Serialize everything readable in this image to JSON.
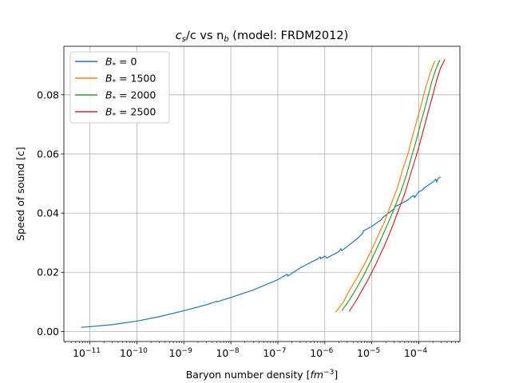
{
  "chart_data": {
    "type": "line",
    "title": "c_s/c vs n_b (model: FRDM2012)",
    "title_parts": {
      "pre": "c",
      "sub1": "s",
      "mid": "/c vs n",
      "sub2": "b",
      "post": " (model: FRDM2012)"
    },
    "xlabel": "Baryon number density [fm^-3]",
    "xlabel_parts": {
      "pre": "Baryon number density [",
      "unit": "fm",
      "sup": "−3",
      "post": "]"
    },
    "ylabel": "Speed of sound [c]",
    "x_scale": "log",
    "xlim": [
      2.8e-12,
      0.00075
    ],
    "ylim": [
      -0.0034,
      0.0964
    ],
    "x_ticks": [
      {
        "exp": -11,
        "label": "10",
        "sup": "−11"
      },
      {
        "exp": -10,
        "label": "10",
        "sup": "−10"
      },
      {
        "exp": -9,
        "label": "10",
        "sup": "−9"
      },
      {
        "exp": -8,
        "label": "10",
        "sup": "−8"
      },
      {
        "exp": -7,
        "label": "10",
        "sup": "−7"
      },
      {
        "exp": -6,
        "label": "10",
        "sup": "−6"
      },
      {
        "exp": -5,
        "label": "10",
        "sup": "−5"
      },
      {
        "exp": -4,
        "label": "10",
        "sup": "−4"
      }
    ],
    "y_ticks": [
      {
        "value": 0.0,
        "label": "0.00"
      },
      {
        "value": 0.02,
        "label": "0.02"
      },
      {
        "value": 0.04,
        "label": "0.04"
      },
      {
        "value": 0.06,
        "label": "0.06"
      },
      {
        "value": 0.08,
        "label": "0.08"
      }
    ],
    "grid": true,
    "legend_position": "top-left",
    "series": [
      {
        "name": "B* = 0",
        "legend_parts": {
          "sym": "B",
          "sub": "*",
          "rest": " = 0"
        },
        "color": "#1f77b4",
        "points": [
          [
            6.5e-12,
            0.0014
          ],
          [
            1e-11,
            0.0016
          ],
          [
            3e-11,
            0.0023
          ],
          [
            1e-10,
            0.0035
          ],
          [
            3e-10,
            0.005
          ],
          [
            1e-09,
            0.007
          ],
          [
            3e-09,
            0.009
          ],
          [
            5e-09,
            0.0102
          ],
          [
            5.1e-09,
            0.01
          ],
          [
            1e-08,
            0.0115
          ],
          [
            3e-08,
            0.014
          ],
          [
            1e-07,
            0.0175
          ],
          [
            1.6e-07,
            0.0194
          ],
          [
            1.61e-07,
            0.0187
          ],
          [
            3e-07,
            0.0215
          ],
          [
            7e-07,
            0.0245
          ],
          [
            8e-07,
            0.0252
          ],
          [
            8.1e-07,
            0.0246
          ],
          [
            1e-06,
            0.0255
          ],
          [
            1.1e-06,
            0.0248
          ],
          [
            2e-06,
            0.027
          ],
          [
            2.2e-06,
            0.028
          ],
          [
            2.3e-06,
            0.0273
          ],
          [
            5e-06,
            0.0315
          ],
          [
            6.5e-06,
            0.0333
          ],
          [
            6.6e-06,
            0.034
          ],
          [
            1e-05,
            0.0355
          ],
          [
            1.6e-05,
            0.0378
          ],
          [
            1.7e-05,
            0.0385
          ],
          [
            2.5e-05,
            0.0405
          ],
          [
            3e-05,
            0.0415
          ],
          [
            3.1e-05,
            0.0422
          ],
          [
            4e-05,
            0.043
          ],
          [
            5e-05,
            0.0438
          ],
          [
            6e-05,
            0.0446
          ],
          [
            7e-05,
            0.0455
          ],
          [
            8e-05,
            0.046
          ],
          [
            8.1e-05,
            0.0452
          ],
          [
            0.0001,
            0.0472
          ],
          [
            0.00012,
            0.0478
          ],
          [
            0.00013,
            0.0485
          ],
          [
            0.00016,
            0.0495
          ],
          [
            0.0002,
            0.0505
          ],
          [
            0.00023,
            0.0515
          ],
          [
            0.00024,
            0.0505
          ],
          [
            0.00026,
            0.0518
          ],
          [
            0.00029,
            0.0522
          ]
        ]
      },
      {
        "name": "B* = 1500",
        "legend_parts": {
          "sym": "B",
          "sub": "*",
          "rest": " = 1500"
        },
        "color": "#ff7f0e",
        "points": [
          [
            1.7e-06,
            0.0065
          ],
          [
            2.5e-06,
            0.01
          ],
          [
            3.5e-06,
            0.0145
          ],
          [
            5e-06,
            0.0185
          ],
          [
            8e-06,
            0.0245
          ],
          [
            1.2e-05,
            0.0305
          ],
          [
            1.8e-05,
            0.0365
          ],
          [
            2.5e-05,
            0.0425
          ],
          [
            3.5e-05,
            0.0485
          ],
          [
            4.5e-05,
            0.0545
          ],
          [
            6e-05,
            0.0605
          ],
          [
            7.5e-05,
            0.0665
          ],
          [
            9e-05,
            0.071
          ],
          [
            0.00011,
            0.076
          ],
          [
            0.00013,
            0.0805
          ],
          [
            0.00015,
            0.084
          ],
          [
            0.00018,
            0.088
          ],
          [
            0.00022,
            0.0915
          ]
        ]
      },
      {
        "name": "B* = 2000",
        "legend_parts": {
          "sym": "B",
          "sub": "*",
          "rest": " = 2000"
        },
        "color": "#2ca02c",
        "points": [
          [
            2.3e-06,
            0.007
          ],
          [
            3.3e-06,
            0.0105
          ],
          [
            4.5e-06,
            0.014
          ],
          [
            6.5e-06,
            0.0185
          ],
          [
            1e-05,
            0.0245
          ],
          [
            1.5e-05,
            0.0305
          ],
          [
            2.2e-05,
            0.0365
          ],
          [
            3e-05,
            0.0415
          ],
          [
            4.2e-05,
            0.0475
          ],
          [
            5.5e-05,
            0.053
          ],
          [
            7e-05,
            0.059
          ],
          [
            9e-05,
            0.065
          ],
          [
            0.00011,
            0.0705
          ],
          [
            0.000135,
            0.0755
          ],
          [
            0.00016,
            0.08
          ],
          [
            0.00019,
            0.0845
          ],
          [
            0.00023,
            0.0885
          ],
          [
            0.00028,
            0.0918
          ]
        ]
      },
      {
        "name": "B* = 2500",
        "legend_parts": {
          "sym": "B",
          "sub": "*",
          "rest": " = 2500"
        },
        "color": "#d62728",
        "points": [
          [
            3.3e-06,
            0.0068
          ],
          [
            4.5e-06,
            0.01
          ],
          [
            6e-06,
            0.0135
          ],
          [
            8e-06,
            0.017
          ],
          [
            1.2e-05,
            0.0225
          ],
          [
            1.8e-05,
            0.0285
          ],
          [
            2.6e-05,
            0.0345
          ],
          [
            3.6e-05,
            0.0405
          ],
          [
            5e-05,
            0.0465
          ],
          [
            6.5e-05,
            0.0525
          ],
          [
            8.5e-05,
            0.0585
          ],
          [
            0.000105,
            0.0635
          ],
          [
            0.00013,
            0.069
          ],
          [
            0.00016,
            0.0745
          ],
          [
            0.0002,
            0.08
          ],
          [
            0.00024,
            0.085
          ],
          [
            0.00029,
            0.089
          ],
          [
            0.00036,
            0.092
          ]
        ]
      }
    ]
  }
}
